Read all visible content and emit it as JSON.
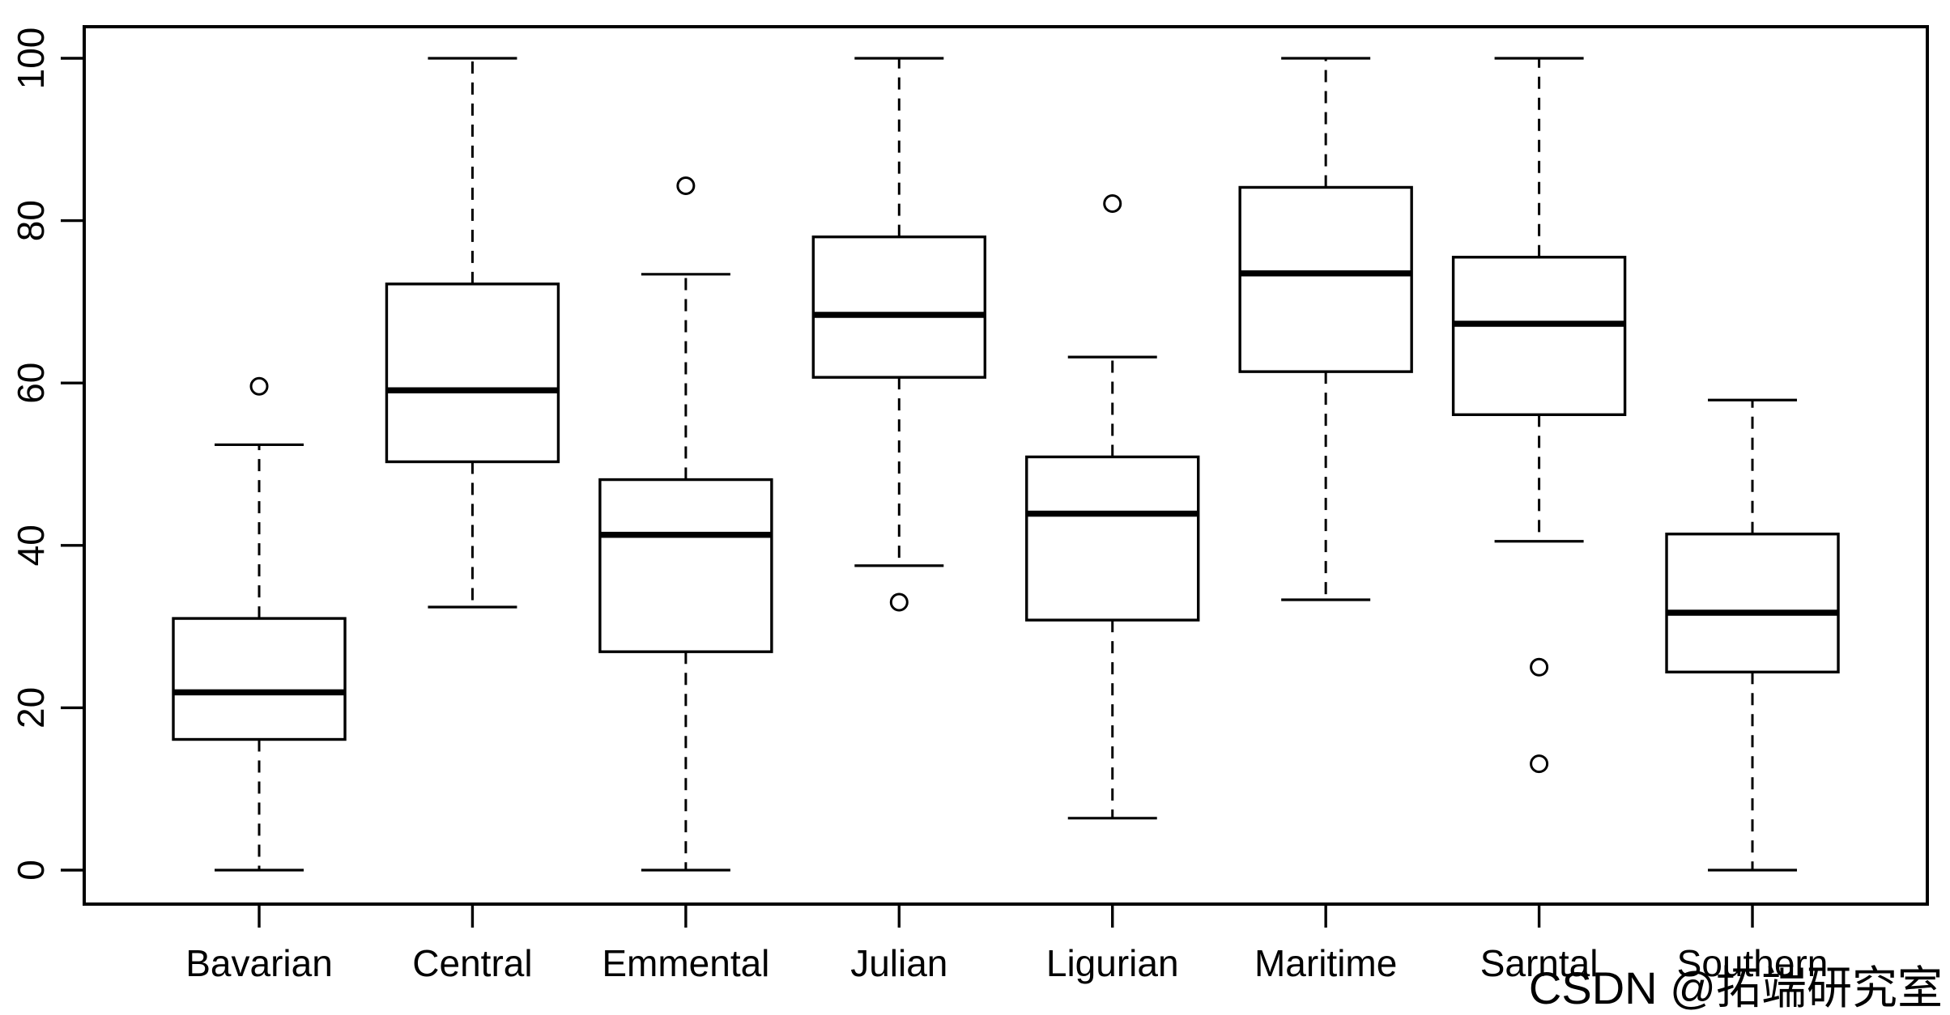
{
  "chart_data": {
    "type": "boxplot",
    "title": "",
    "xlabel": "",
    "ylabel": "",
    "ylim": [
      0,
      100
    ],
    "yticks": [
      0,
      20,
      40,
      60,
      80,
      100
    ],
    "grid": false,
    "legend": null,
    "categories": [
      "Bavarian",
      "Central",
      "Emmental",
      "Julian",
      "Ligurian",
      "Maritime",
      "Sarntal",
      "Southern"
    ],
    "series": [
      {
        "label": "Bavarian",
        "whisker_low": 0,
        "q1": 16.1,
        "median": 21.9,
        "q3": 31.0,
        "whisker_high": 52.4,
        "outliers": [
          59.6
        ]
      },
      {
        "label": "Central",
        "whisker_low": 32.4,
        "q1": 50.3,
        "median": 59.1,
        "q3": 72.2,
        "whisker_high": 100.0,
        "outliers": []
      },
      {
        "label": "Emmental",
        "whisker_low": 0,
        "q1": 26.9,
        "median": 41.3,
        "q3": 48.1,
        "whisker_high": 73.4,
        "outliers": [
          84.3
        ]
      },
      {
        "label": "Julian",
        "whisker_low": 37.5,
        "q1": 60.7,
        "median": 68.4,
        "q3": 78.0,
        "whisker_high": 100.0,
        "outliers": [
          33.0
        ]
      },
      {
        "label": "Ligurian",
        "whisker_low": 6.4,
        "q1": 30.8,
        "median": 43.9,
        "q3": 50.9,
        "whisker_high": 63.2,
        "outliers": [
          82.1
        ]
      },
      {
        "label": "Maritime",
        "whisker_low": 33.3,
        "q1": 61.4,
        "median": 73.5,
        "q3": 84.1,
        "whisker_high": 100.0,
        "outliers": []
      },
      {
        "label": "Sarntal",
        "whisker_low": 40.5,
        "q1": 56.1,
        "median": 67.3,
        "q3": 75.5,
        "whisker_high": 100.0,
        "outliers": [
          25.0,
          13.1
        ]
      },
      {
        "label": "Southern",
        "whisker_low": 0,
        "q1": 24.4,
        "median": 31.7,
        "q3": 41.4,
        "whisker_high": 57.9,
        "outliers": []
      }
    ]
  },
  "watermark": {
    "text": "CSDN @拓端研究室",
    "color": "#dedede"
  },
  "colors": {
    "line": "#000000",
    "background": "#ffffff"
  }
}
